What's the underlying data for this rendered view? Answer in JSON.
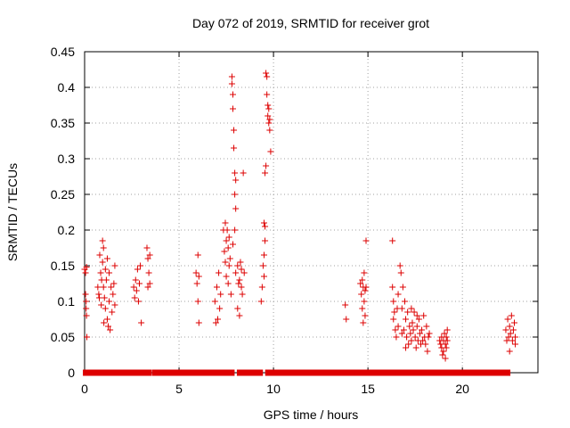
{
  "chart_data": {
    "type": "scatter",
    "title": "Day 072 of 2019, SRMTID for receiver grot",
    "xlabel": "GPS time / hours",
    "ylabel": "SRMTID / TECUs",
    "xlim": [
      0,
      24
    ],
    "ylim": [
      0,
      0.45
    ],
    "xticks": [
      0,
      5,
      10,
      15,
      20
    ],
    "yticks": [
      0,
      0.05,
      0.1,
      0.15,
      0.2,
      0.25,
      0.3,
      0.35,
      0.4,
      0.45
    ],
    "xtick_labels": [
      "0",
      "5",
      "10",
      "15",
      "20"
    ],
    "ytick_labels": [
      "0",
      "0.05",
      "0.1",
      "0.15",
      "0.2",
      "0.25",
      "0.3",
      "0.35",
      "0.4",
      "0.45"
    ],
    "grid": true,
    "legend": "none",
    "marker": "plus",
    "color": "#dd0000",
    "series": [
      {
        "points": [
          [
            0.0,
            0.145
          ],
          [
            0.05,
            0.14
          ],
          [
            0.05,
            0.11
          ],
          [
            0.08,
            0.1
          ],
          [
            0.08,
            0.09
          ],
          [
            0.1,
            0.08
          ],
          [
            0.12,
            0.05
          ],
          [
            0.1,
            0.148
          ],
          [
            0.7,
            0.12
          ],
          [
            0.75,
            0.11
          ],
          [
            0.8,
            0.165
          ],
          [
            0.85,
            0.14
          ],
          [
            0.9,
            0.13
          ],
          [
            0.95,
            0.185
          ],
          [
            0.95,
            0.155
          ],
          [
            1.0,
            0.175
          ],
          [
            1.0,
            0.12
          ],
          [
            1.05,
            0.105
          ],
          [
            1.1,
            0.145
          ],
          [
            1.1,
            0.09
          ],
          [
            1.15,
            0.13
          ],
          [
            1.2,
            0.16
          ],
          [
            1.2,
            0.075
          ],
          [
            1.25,
            0.065
          ],
          [
            1.3,
            0.14
          ],
          [
            1.3,
            0.1
          ],
          [
            1.35,
            0.06
          ],
          [
            1.4,
            0.12
          ],
          [
            1.45,
            0.085
          ],
          [
            1.5,
            0.11
          ],
          [
            1.55,
            0.125
          ],
          [
            1.6,
            0.15
          ],
          [
            1.6,
            0.095
          ],
          [
            0.78,
            0.105
          ],
          [
            0.88,
            0.095
          ],
          [
            1.02,
            0.07
          ],
          [
            2.6,
            0.12
          ],
          [
            2.65,
            0.105
          ],
          [
            2.7,
            0.13
          ],
          [
            2.75,
            0.115
          ],
          [
            2.8,
            0.145
          ],
          [
            2.85,
            0.1
          ],
          [
            2.9,
            0.125
          ],
          [
            2.95,
            0.15
          ],
          [
            3.0,
            0.07
          ],
          [
            3.3,
            0.175
          ],
          [
            3.35,
            0.16
          ],
          [
            3.35,
            0.12
          ],
          [
            3.4,
            0.14
          ],
          [
            3.45,
            0.125
          ],
          [
            3.45,
            0.165
          ],
          [
            5.9,
            0.14
          ],
          [
            5.95,
            0.125
          ],
          [
            6.0,
            0.165
          ],
          [
            6.0,
            0.1
          ],
          [
            6.05,
            0.135
          ],
          [
            6.05,
            0.07
          ],
          [
            6.9,
            0.1
          ],
          [
            6.95,
            0.07
          ],
          [
            7.0,
            0.12
          ],
          [
            7.05,
            0.075
          ],
          [
            7.1,
            0.14
          ],
          [
            7.15,
            0.09
          ],
          [
            7.2,
            0.11
          ],
          [
            7.35,
            0.2
          ],
          [
            7.4,
            0.17
          ],
          [
            7.45,
            0.155
          ],
          [
            7.45,
            0.21
          ],
          [
            7.5,
            0.185
          ],
          [
            7.55,
            0.2
          ],
          [
            7.6,
            0.175
          ],
          [
            7.65,
            0.19
          ],
          [
            7.65,
            0.15
          ],
          [
            7.7,
            0.16
          ],
          [
            7.5,
            0.135
          ],
          [
            7.6,
            0.125
          ],
          [
            7.75,
            0.11
          ],
          [
            7.8,
            0.415
          ],
          [
            7.8,
            0.405
          ],
          [
            7.85,
            0.39
          ],
          [
            7.85,
            0.37
          ],
          [
            7.9,
            0.34
          ],
          [
            7.9,
            0.315
          ],
          [
            7.95,
            0.28
          ],
          [
            7.95,
            0.25
          ],
          [
            8.0,
            0.27
          ],
          [
            8.0,
            0.23
          ],
          [
            7.85,
            0.18
          ],
          [
            7.95,
            0.2
          ],
          [
            8.0,
            0.14
          ],
          [
            8.1,
            0.15
          ],
          [
            8.15,
            0.125
          ],
          [
            8.2,
            0.13
          ],
          [
            8.25,
            0.155
          ],
          [
            8.3,
            0.145
          ],
          [
            8.35,
            0.11
          ],
          [
            8.1,
            0.09
          ],
          [
            8.2,
            0.08
          ],
          [
            8.4,
            0.28
          ],
          [
            8.3,
            0.12
          ],
          [
            8.45,
            0.14
          ],
          [
            9.35,
            0.1
          ],
          [
            9.4,
            0.12
          ],
          [
            9.45,
            0.15
          ],
          [
            9.5,
            0.165
          ],
          [
            9.5,
            0.21
          ],
          [
            9.55,
            0.205
          ],
          [
            9.55,
            0.185
          ],
          [
            9.55,
            0.28
          ],
          [
            9.6,
            0.29
          ],
          [
            9.6,
            0.42
          ],
          [
            9.65,
            0.415
          ],
          [
            9.65,
            0.39
          ],
          [
            9.7,
            0.375
          ],
          [
            9.7,
            0.36
          ],
          [
            9.75,
            0.37
          ],
          [
            9.75,
            0.35
          ],
          [
            9.8,
            0.355
          ],
          [
            9.8,
            0.34
          ],
          [
            9.85,
            0.31
          ],
          [
            9.5,
            0.135
          ],
          [
            13.8,
            0.095
          ],
          [
            13.85,
            0.075
          ],
          [
            14.6,
            0.125
          ],
          [
            14.65,
            0.11
          ],
          [
            14.7,
            0.13
          ],
          [
            14.7,
            0.09
          ],
          [
            14.75,
            0.12
          ],
          [
            14.75,
            0.07
          ],
          [
            14.8,
            0.1
          ],
          [
            14.8,
            0.14
          ],
          [
            14.85,
            0.115
          ],
          [
            14.85,
            0.08
          ],
          [
            14.9,
            0.185
          ],
          [
            14.9,
            0.12
          ],
          [
            16.3,
            0.185
          ],
          [
            16.3,
            0.12
          ],
          [
            16.35,
            0.1
          ],
          [
            16.35,
            0.075
          ],
          [
            16.4,
            0.085
          ],
          [
            16.45,
            0.06
          ],
          [
            16.5,
            0.05
          ],
          [
            16.55,
            0.09
          ],
          [
            16.6,
            0.11
          ],
          [
            16.6,
            0.065
          ],
          [
            16.7,
            0.15
          ],
          [
            16.75,
            0.14
          ],
          [
            16.8,
            0.09
          ],
          [
            16.85,
            0.12
          ],
          [
            16.9,
            0.06
          ],
          [
            16.95,
            0.1
          ],
          [
            17.0,
            0.075
          ],
          [
            17.05,
            0.05
          ],
          [
            17.1,
            0.085
          ],
          [
            17.15,
            0.04
          ],
          [
            17.2,
            0.065
          ],
          [
            17.25,
            0.055
          ],
          [
            17.3,
            0.045
          ],
          [
            17.35,
            0.07
          ],
          [
            17.4,
            0.06
          ],
          [
            17.45,
            0.085
          ],
          [
            17.5,
            0.05
          ],
          [
            17.55,
            0.035
          ],
          [
            17.6,
            0.065
          ],
          [
            17.65,
            0.045
          ],
          [
            17.7,
            0.075
          ],
          [
            17.75,
            0.055
          ],
          [
            17.8,
            0.04
          ],
          [
            17.85,
            0.06
          ],
          [
            17.9,
            0.045
          ],
          [
            17.95,
            0.08
          ],
          [
            18.0,
            0.05
          ],
          [
            18.05,
            0.04
          ],
          [
            18.1,
            0.065
          ],
          [
            18.15,
            0.03
          ],
          [
            18.2,
            0.05
          ],
          [
            18.25,
            0.055
          ],
          [
            16.8,
            0.055
          ],
          [
            17.0,
            0.035
          ],
          [
            17.3,
            0.09
          ],
          [
            17.6,
            0.08
          ],
          [
            18.8,
            0.045
          ],
          [
            18.85,
            0.04
          ],
          [
            18.9,
            0.035
          ],
          [
            18.9,
            0.05
          ],
          [
            18.95,
            0.025
          ],
          [
            19.0,
            0.045
          ],
          [
            19.0,
            0.03
          ],
          [
            19.05,
            0.055
          ],
          [
            19.1,
            0.04
          ],
          [
            19.15,
            0.035
          ],
          [
            19.15,
            0.05
          ],
          [
            19.2,
            0.045
          ],
          [
            19.2,
            0.06
          ],
          [
            19.1,
            0.02
          ],
          [
            22.3,
            0.06
          ],
          [
            22.35,
            0.045
          ],
          [
            22.4,
            0.075
          ],
          [
            22.45,
            0.05
          ],
          [
            22.5,
            0.03
          ],
          [
            22.5,
            0.065
          ],
          [
            22.55,
            0.055
          ],
          [
            22.6,
            0.08
          ],
          [
            22.65,
            0.045
          ],
          [
            22.7,
            0.06
          ],
          [
            22.75,
            0.07
          ],
          [
            22.8,
            0.05
          ],
          [
            22.8,
            0.04
          ]
        ]
      }
    ],
    "zero_runs": [
      [
        0.05,
        0.12
      ],
      [
        0.12,
        0.75
      ],
      [
        0.9,
        1.3
      ],
      [
        1.5,
        1.7
      ],
      [
        1.9,
        2.8
      ],
      [
        3.0,
        3.4
      ],
      [
        3.7,
        5.8
      ],
      [
        6.0,
        7.3
      ],
      [
        7.5,
        7.6
      ],
      [
        7.7,
        7.8
      ],
      [
        8.2,
        9.3
      ],
      [
        9.7,
        13.6
      ],
      [
        13.7,
        14.3
      ],
      [
        14.4,
        15.0
      ],
      [
        15.1,
        16.5
      ],
      [
        16.6,
        17.3
      ],
      [
        17.4,
        17.6
      ],
      [
        17.8,
        18.2
      ],
      [
        18.4,
        19.0
      ],
      [
        19.2,
        19.6
      ],
      [
        19.7,
        22.4
      ]
    ]
  }
}
